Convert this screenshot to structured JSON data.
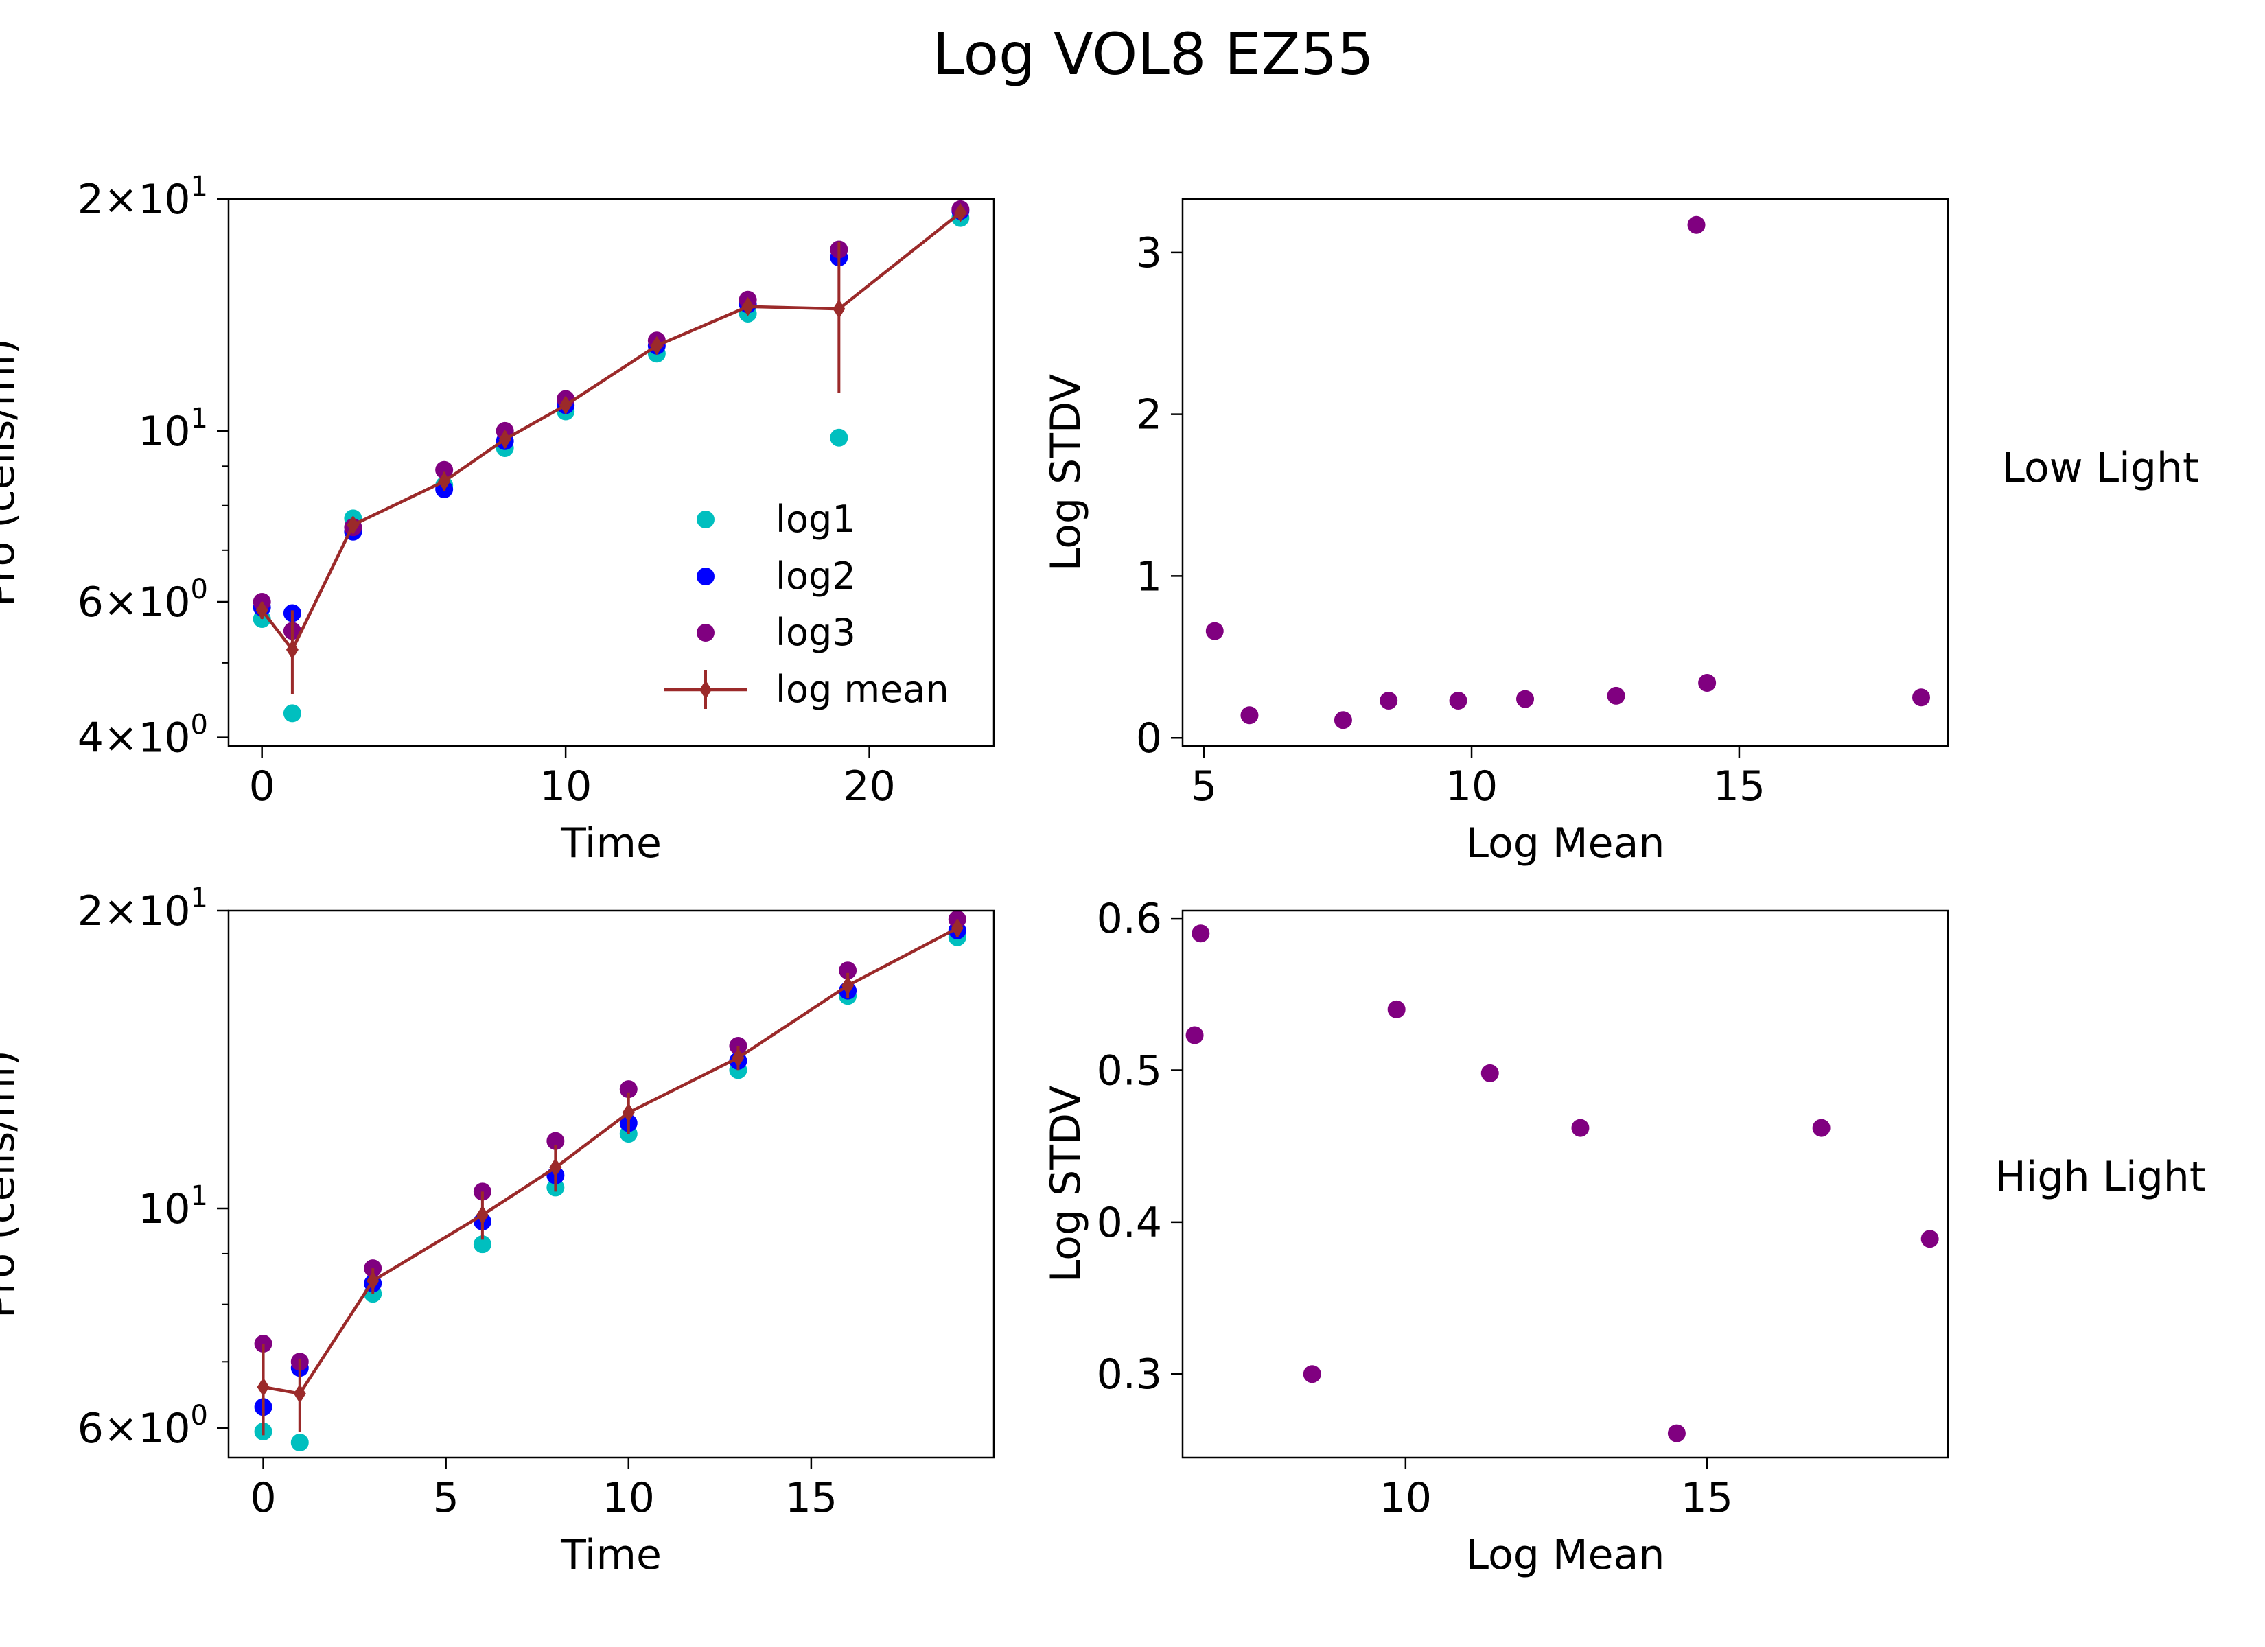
{
  "figure": {
    "title": "Log VOL8 EZ55",
    "row_labels": [
      "Low Light",
      "High Light"
    ]
  },
  "colors": {
    "log1": "#00bfbf",
    "log2": "#0000ff",
    "log3": "#800080",
    "log_mean": "#9b2a2a",
    "stdv": "#800080"
  },
  "chart_data": [
    {
      "id": "low-time",
      "type": "scatter",
      "xlabel": "Time",
      "ylabel": "Pro (cells/ml)",
      "ylog": true,
      "xlim": [
        -1.1,
        24.1
      ],
      "ylim": [
        3.9,
        20.0
      ],
      "xticks": [
        0,
        10,
        20
      ],
      "yticks": [
        {
          "v": 20,
          "m": "2",
          "sup": "1"
        },
        {
          "v": 10,
          "m": "",
          "sup": "1"
        },
        {
          "v": 6,
          "m": "6",
          "sup": "0"
        },
        {
          "v": 4,
          "m": "4",
          "sup": "0"
        }
      ],
      "yminor": [
        5,
        7,
        8,
        9
      ],
      "legend": {
        "position": "lower-right",
        "entries": [
          "log1",
          "log2",
          " log3",
          "log mean"
        ]
      },
      "series": [
        {
          "name": "log1",
          "key": "log1",
          "x": [
            0,
            1,
            3,
            6,
            8,
            10,
            13,
            16,
            19,
            23
          ],
          "y": [
            5.7,
            4.3,
            7.7,
            8.5,
            9.5,
            10.6,
            12.6,
            14.2,
            9.8,
            18.9
          ]
        },
        {
          "name": "log2",
          "key": "log2",
          "x": [
            0,
            1,
            3,
            6,
            8,
            10,
            13,
            16,
            19,
            23
          ],
          "y": [
            5.9,
            5.8,
            7.4,
            8.4,
            9.7,
            10.8,
            12.9,
            14.6,
            16.8,
            19.3
          ]
        },
        {
          "name": " log3",
          "key": "log3",
          "x": [
            0,
            1,
            3,
            6,
            8,
            10,
            13,
            16,
            19,
            23
          ],
          "y": [
            6.0,
            5.5,
            7.5,
            8.9,
            10.0,
            11.0,
            13.1,
            14.8,
            17.2,
            19.4
          ]
        }
      ],
      "mean": {
        "name": "log mean",
        "x": [
          0,
          1,
          3,
          6,
          8,
          10,
          13,
          16,
          19,
          23
        ],
        "y": [
          5.85,
          5.2,
          7.55,
          8.6,
          9.75,
          10.8,
          12.9,
          14.5,
          14.4,
          19.2
        ],
        "err": [
          0.15,
          0.65,
          0.15,
          0.25,
          0.25,
          0.2,
          0.25,
          0.3,
          3.2,
          0.25
        ]
      }
    },
    {
      "id": "low-stdv",
      "type": "scatter",
      "xlabel": "Log Mean",
      "ylabel": "Log STDV",
      "xlim": [
        4.6,
        18.9
      ],
      "ylim": [
        -0.05,
        3.33
      ],
      "xticks": [
        5,
        10,
        15
      ],
      "yticks": [
        0,
        1,
        2,
        3
      ],
      "points": {
        "x": [
          5.2,
          5.85,
          7.6,
          8.45,
          9.75,
          11.0,
          12.7,
          14.2,
          14.4,
          18.4
        ],
        "y": [
          0.66,
          0.14,
          0.11,
          0.23,
          0.23,
          0.24,
          0.26,
          3.17,
          0.34,
          0.25
        ]
      }
    },
    {
      "id": "high-time",
      "type": "scatter",
      "xlabel": "Time",
      "ylabel": "Pro (cells/ml)",
      "ylog": true,
      "xlim": [
        -0.95,
        20.0
      ],
      "ylim": [
        5.6,
        20.0
      ],
      "xticks": [
        0,
        5,
        10,
        15
      ],
      "yticks": [
        {
          "v": 20,
          "m": "2",
          "sup": "1"
        },
        {
          "v": 10,
          "m": "",
          "sup": "1"
        },
        {
          "v": 6,
          "m": "6",
          "sup": "0"
        }
      ],
      "yminor": [
        7,
        8,
        9
      ],
      "series": [
        {
          "name": "log1",
          "key": "log1",
          "x": [
            0,
            1,
            3,
            6,
            8,
            10,
            13,
            16,
            19
          ],
          "y": [
            5.95,
            5.8,
            8.2,
            9.2,
            10.5,
            11.9,
            13.8,
            16.4,
            18.8
          ]
        },
        {
          "name": "log2",
          "key": "log2",
          "x": [
            0,
            1,
            3,
            6,
            8,
            10,
            13,
            16,
            19
          ],
          "y": [
            6.3,
            6.9,
            8.4,
            9.7,
            10.8,
            12.2,
            14.1,
            16.6,
            19.1
          ]
        },
        {
          "name": " log3",
          "key": "log3",
          "x": [
            0,
            1,
            3,
            6,
            8,
            10,
            13,
            16,
            19
          ],
          "y": [
            7.3,
            7.0,
            8.7,
            10.4,
            11.7,
            13.2,
            14.6,
            17.4,
            19.6
          ]
        }
      ],
      "mean": {
        "name": "log mean",
        "x": [
          0,
          1,
          3,
          6,
          8,
          10,
          13,
          16,
          19
        ],
        "y": [
          6.6,
          6.5,
          8.45,
          9.85,
          11.0,
          12.5,
          14.2,
          16.8,
          19.2
        ],
        "err": [
          0.7,
          0.55,
          0.25,
          0.55,
          0.6,
          0.6,
          0.4,
          0.5,
          0.4
        ]
      }
    },
    {
      "id": "high-stdv",
      "type": "scatter",
      "xlabel": "Log Mean",
      "ylabel": "Log STDV",
      "xlim": [
        6.3,
        19.0
      ],
      "ylim": [
        0.245,
        0.605
      ],
      "xticks": [
        10,
        15
      ],
      "yticks": [
        0.3,
        0.4,
        0.5,
        0.6
      ],
      "points": {
        "x": [
          6.6,
          6.5,
          8.45,
          9.85,
          11.4,
          12.9,
          14.5,
          16.9,
          18.7
        ],
        "y": [
          0.59,
          0.523,
          0.3,
          0.54,
          0.498,
          0.462,
          0.261,
          0.462,
          0.389
        ]
      }
    }
  ]
}
